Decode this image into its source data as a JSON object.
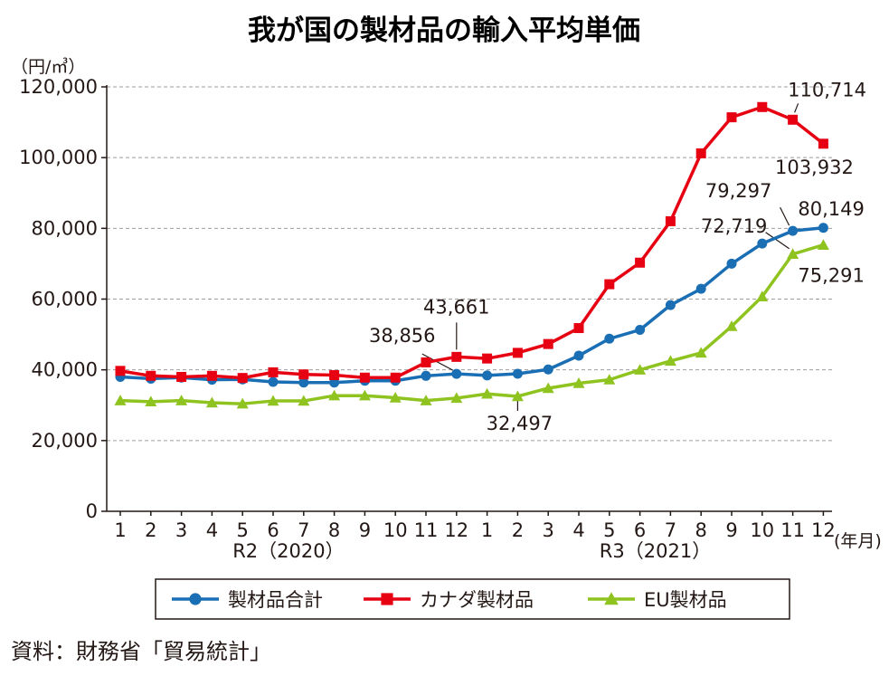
{
  "chart_data": {
    "type": "line",
    "title": "我が国の製材品の輸入平均単価",
    "y_unit": "（円/㎥）",
    "x_unit": "(年月)",
    "ylim": [
      0,
      120000
    ],
    "y_ticks": [
      0,
      20000,
      40000,
      60000,
      80000,
      100000,
      120000
    ],
    "y_tick_labels": [
      "0",
      "20,000",
      "40,000",
      "60,000",
      "80,000",
      "100,000",
      "120,000"
    ],
    "grid": "horizontal-dashed",
    "legend_position": "bottom",
    "categories": [
      "1",
      "2",
      "3",
      "4",
      "5",
      "6",
      "7",
      "8",
      "9",
      "10",
      "11",
      "12",
      "1",
      "2",
      "3",
      "4",
      "5",
      "6",
      "7",
      "8",
      "9",
      "10",
      "11",
      "12"
    ],
    "year_groups": [
      {
        "label": "R2（2020）",
        "start": 0,
        "end": 11
      },
      {
        "label": "R3（2021）",
        "start": 12,
        "end": 23
      }
    ],
    "series": [
      {
        "name": "製材品合計",
        "color": "#1a6eb4",
        "marker": "circle",
        "values": [
          38000,
          37500,
          37800,
          37200,
          37300,
          36600,
          36400,
          36400,
          36900,
          36900,
          38300,
          38856,
          38400,
          38900,
          40100,
          44000,
          48800,
          51300,
          58300,
          62900,
          70000,
          75700,
          79297,
          80149
        ]
      },
      {
        "name": "カナダ製材品",
        "color": "#e60012",
        "marker": "square",
        "values": [
          39700,
          38300,
          38000,
          38300,
          37700,
          39300,
          38700,
          38500,
          37800,
          37800,
          42100,
          43661,
          43200,
          44800,
          47300,
          51800,
          64200,
          70300,
          82000,
          101200,
          111400,
          114300,
          110714,
          103932
        ]
      },
      {
        "name": "EU製材品",
        "color": "#8fc31f",
        "marker": "triangle",
        "values": [
          31300,
          31000,
          31300,
          30700,
          30400,
          31200,
          31200,
          32700,
          32700,
          32100,
          31300,
          32000,
          33200,
          32497,
          34800,
          36200,
          37200,
          40000,
          42500,
          44800,
          52300,
          60700,
          72719,
          75291
        ]
      }
    ],
    "annotations": [
      {
        "text": "38,856",
        "series": 0,
        "index": 11
      },
      {
        "text": "43,661",
        "series": 1,
        "index": 11
      },
      {
        "text": "32,497",
        "series": 2,
        "index": 13
      },
      {
        "text": "110,714",
        "series": 1,
        "index": 22
      },
      {
        "text": "103,932",
        "series": 1,
        "index": 23
      },
      {
        "text": "79,297",
        "series": 0,
        "index": 22
      },
      {
        "text": "80,149",
        "series": 0,
        "index": 23
      },
      {
        "text": "72,719",
        "series": 2,
        "index": 22
      },
      {
        "text": "75,291",
        "series": 2,
        "index": 23
      }
    ]
  },
  "source": "資料：財務省「貿易統計」"
}
